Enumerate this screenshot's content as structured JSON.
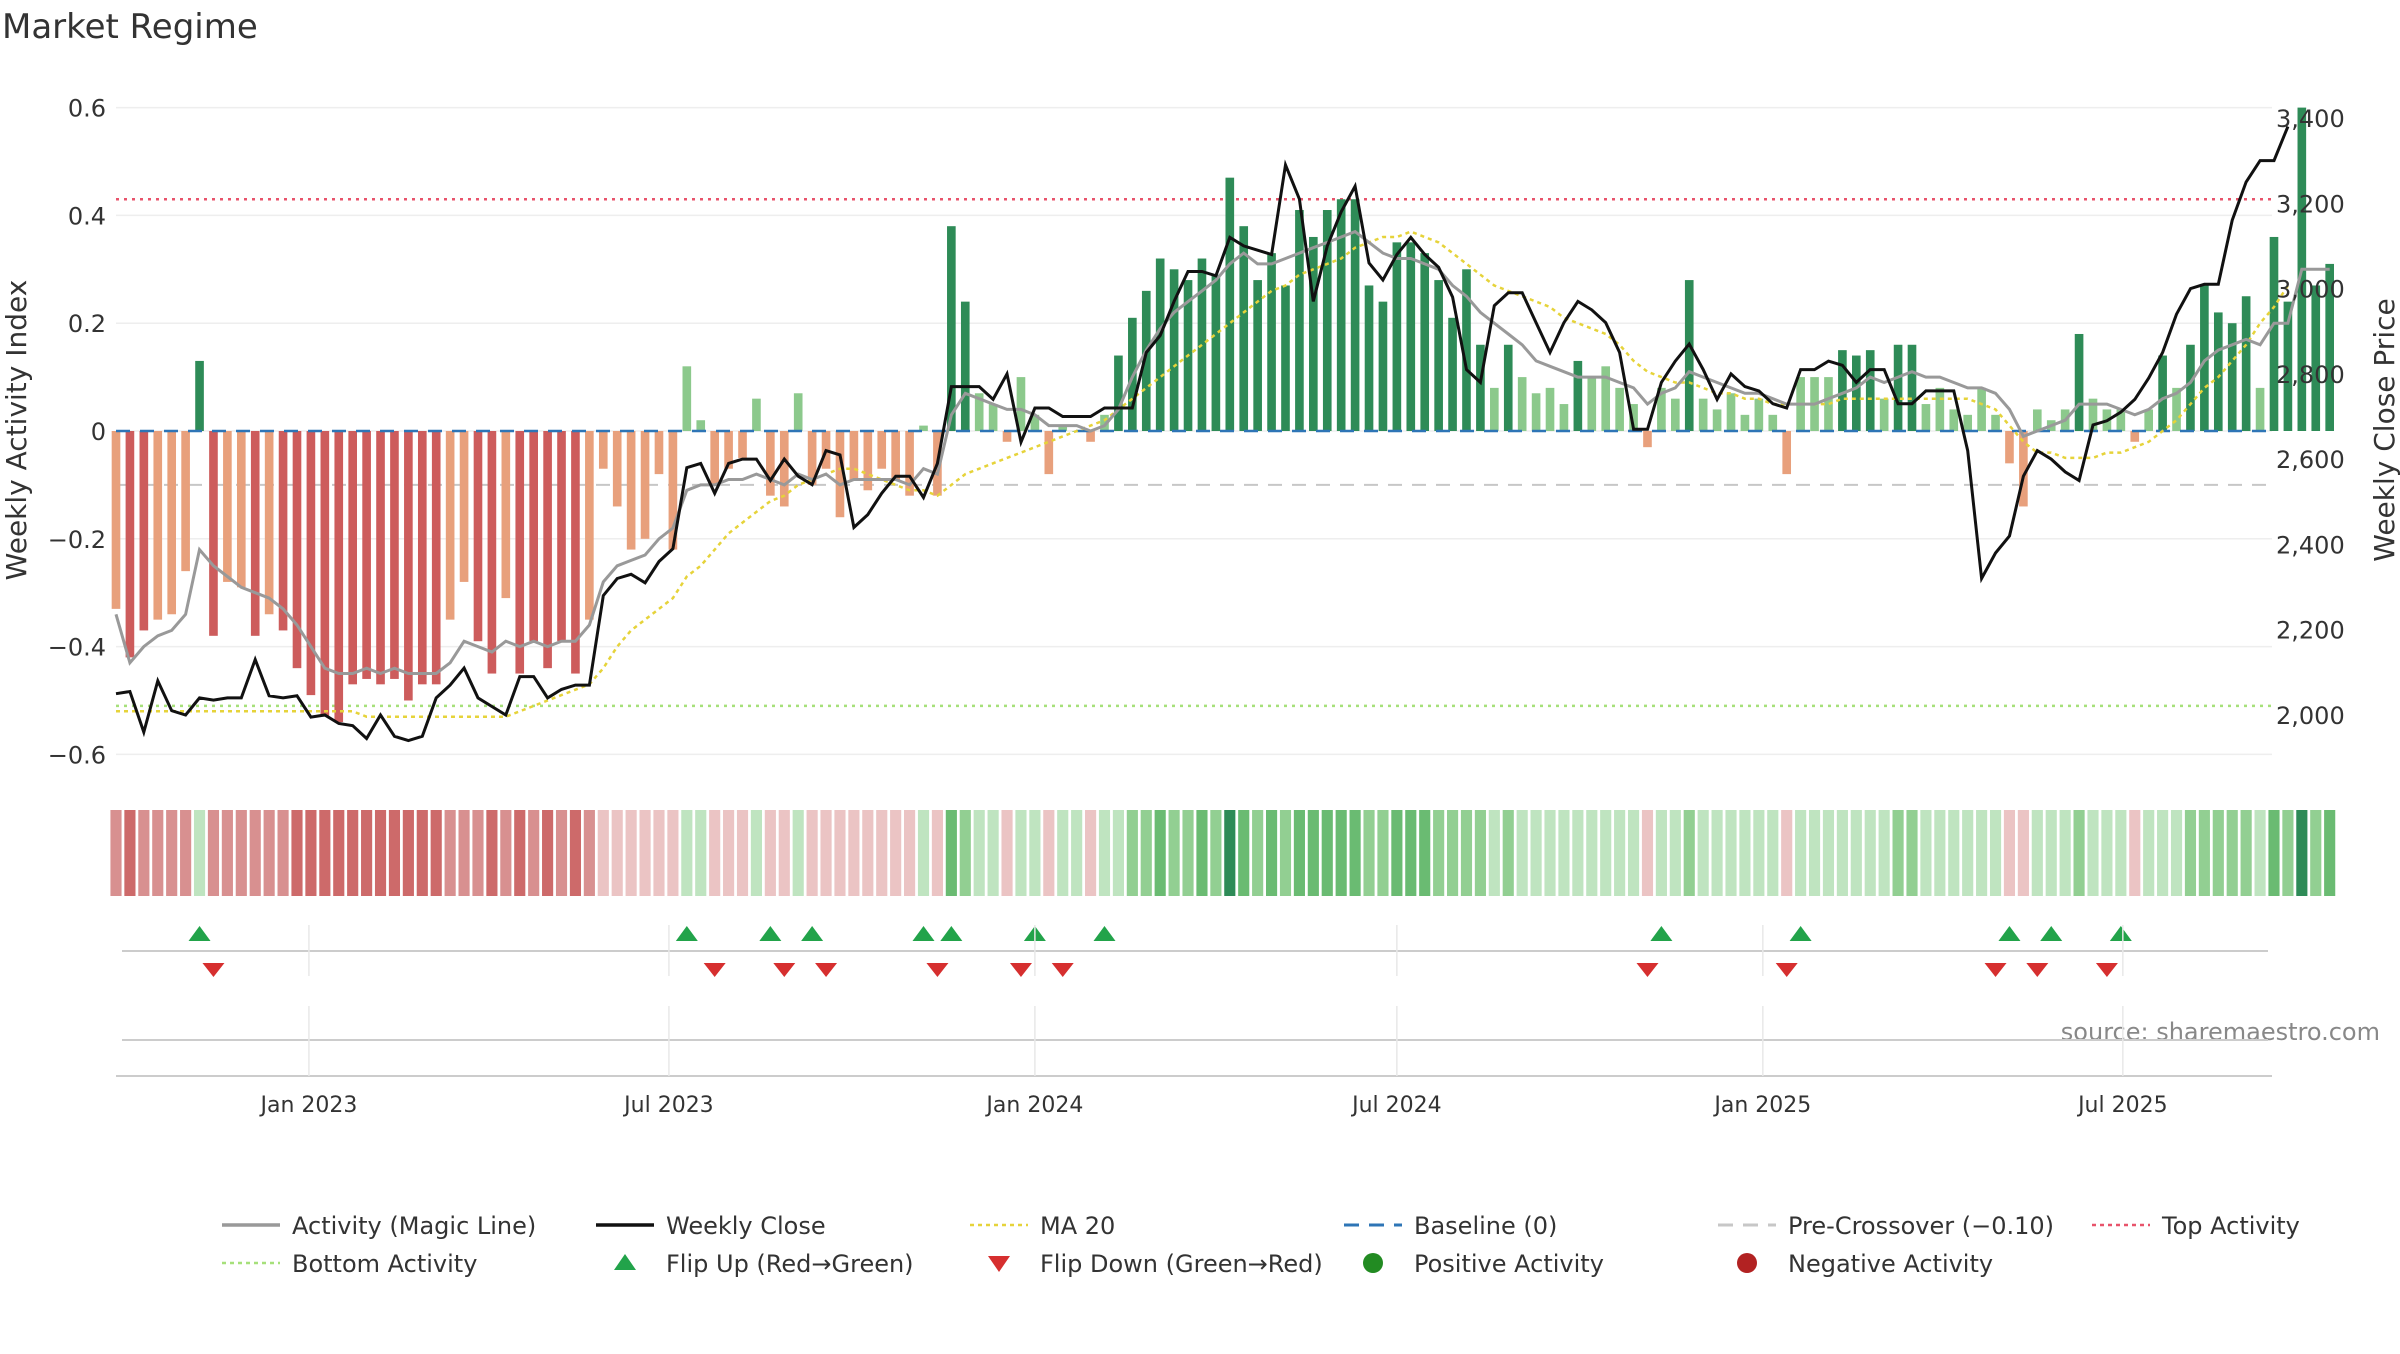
{
  "chart_data": {
    "type": "bar",
    "title": "Market Regime",
    "ylabel": "Weekly Activity Index",
    "y2label": "Weekly Close Price",
    "ylim": [
      -0.65,
      0.65
    ],
    "y2lim": [
      1880,
      3450
    ],
    "yticks": [
      0.6,
      0.4,
      0.2,
      0,
      -0.2,
      -0.4,
      -0.6
    ],
    "yticklabels": [
      "0.6",
      "0.4",
      "0.2",
      "0",
      "−0.2",
      "−0.4",
      "−0.6"
    ],
    "y2ticks": [
      3400,
      3200,
      3000,
      2800,
      2600,
      2400,
      2200,
      2000
    ],
    "y2ticklabels": [
      "3,400",
      "3,200",
      "3,000",
      "2,800",
      "2,600",
      "2,400",
      "2,200",
      "2,000"
    ],
    "xlim": [
      "2022-09-26",
      "2025-09-14"
    ],
    "xticks": [
      "2023-01-01",
      "2023-07-01",
      "2024-01-01",
      "2024-07-01",
      "2025-01-01",
      "2025-07-01"
    ],
    "xticklabels": [
      "Jan 2023",
      "Jul 2023",
      "Jan 2024",
      "Jul 2024",
      "Jan 2025",
      "Jul 2025"
    ],
    "grid": true,
    "legend_position": "bottom",
    "source": "source: sharemaestro.com",
    "start_date": "2022-09-26",
    "week_interval_days": 7,
    "reference_lines": {
      "top_activity": 0.43,
      "bottom_activity": -0.51,
      "baseline": 0,
      "pre_crossover": -0.1
    },
    "activity": [
      -0.33,
      -0.42,
      -0.37,
      -0.35,
      -0.34,
      -0.26,
      0.13,
      -0.38,
      -0.28,
      -0.29,
      -0.38,
      -0.34,
      -0.37,
      -0.44,
      -0.49,
      -0.53,
      -0.54,
      -0.47,
      -0.46,
      -0.47,
      -0.46,
      -0.5,
      -0.47,
      -0.47,
      -0.35,
      -0.28,
      -0.39,
      -0.45,
      -0.31,
      -0.45,
      -0.39,
      -0.44,
      -0.39,
      -0.45,
      -0.35,
      -0.07,
      -0.14,
      -0.22,
      -0.2,
      -0.08,
      -0.22,
      0.12,
      0.02,
      -0.1,
      -0.07,
      -0.05,
      0.06,
      -0.12,
      -0.14,
      0.07,
      -0.1,
      -0.07,
      -0.16,
      -0.09,
      -0.11,
      -0.07,
      -0.09,
      -0.12,
      0.01,
      -0.12,
      0.38,
      0.24,
      0.07,
      0.05,
      -0.02,
      0.1,
      0.03,
      -0.08,
      0.01,
      0,
      -0.02,
      0.03,
      0.14,
      0.21,
      0.26,
      0.32,
      0.3,
      0.28,
      0.32,
      0.29,
      0.47,
      0.38,
      0.28,
      0.33,
      0.27,
      0.41,
      0.36,
      0.41,
      0.43,
      0.43,
      0.27,
      0.24,
      0.35,
      0.35,
      0.33,
      0.28,
      0.21,
      0.3,
      0.16,
      0.08,
      0.16,
      0.1,
      0.07,
      0.08,
      0.05,
      0.13,
      0.1,
      0.12,
      0.08,
      0.05,
      -0.03,
      0.08,
      0.06,
      0.28,
      0.06,
      0.04,
      0.07,
      0.03,
      0.06,
      0.03,
      -0.08,
      0.1,
      0.1,
      0.1,
      0.15,
      0.14,
      0.15,
      0.06,
      0.16,
      0.16,
      0.05,
      0.08,
      0.04,
      0.03,
      0.08,
      0.03,
      -0.06,
      -0.14,
      0.04,
      0.02,
      0.04,
      0.18,
      0.06,
      0.04,
      0.04,
      -0.02,
      0.04,
      0.14,
      0.08,
      0.16,
      0.27,
      0.22,
      0.2,
      0.25,
      0.08,
      0.36,
      0.24,
      0.6,
      0.27,
      0.31
    ],
    "weekly_close": [
      2050,
      2055,
      1960,
      2080,
      2010,
      2000,
      2040,
      2035,
      2040,
      2040,
      2130,
      2045,
      2040,
      2045,
      1995,
      2000,
      1980,
      1975,
      1945,
      2000,
      1950,
      1940,
      1950,
      2040,
      2070,
      2110,
      2040,
      2020,
      2000,
      2090,
      2090,
      2040,
      2060,
      2070,
      2070,
      2280,
      2320,
      2330,
      2310,
      2360,
      2390,
      2580,
      2590,
      2520,
      2590,
      2600,
      2600,
      2550,
      2600,
      2560,
      2540,
      2620,
      2610,
      2440,
      2470,
      2520,
      2560,
      2560,
      2510,
      2590,
      2770,
      2770,
      2770,
      2740,
      2800,
      2640,
      2720,
      2720,
      2700,
      2700,
      2700,
      2720,
      2720,
      2720,
      2850,
      2890,
      2970,
      3040,
      3040,
      3030,
      3120,
      3100,
      3090,
      3080,
      3290,
      3210,
      2970,
      3100,
      3180,
      3240,
      3060,
      3020,
      3080,
      3120,
      3080,
      3050,
      2980,
      2810,
      2780,
      2960,
      2990,
      2990,
      2920,
      2850,
      2920,
      2970,
      2950,
      2920,
      2850,
      2670,
      2670,
      2780,
      2830,
      2870,
      2810,
      2740,
      2800,
      2770,
      2760,
      2730,
      2720,
      2810,
      2810,
      2830,
      2820,
      2780,
      2810,
      2810,
      2730,
      2730,
      2760,
      2760,
      2760,
      2620,
      2320,
      2380,
      2420,
      2560,
      2620,
      2600,
      2570,
      2550,
      2680,
      2690,
      2710,
      2740,
      2790,
      2850,
      2940,
      3000,
      3010,
      3010,
      3160,
      3250,
      3300,
      3300,
      3380
    ],
    "magic_line": [
      -0.34,
      -0.43,
      -0.4,
      -0.38,
      -0.37,
      -0.34,
      -0.22,
      -0.25,
      -0.27,
      -0.29,
      -0.3,
      -0.31,
      -0.33,
      -0.36,
      -0.4,
      -0.44,
      -0.45,
      -0.45,
      -0.44,
      -0.45,
      -0.44,
      -0.45,
      -0.45,
      -0.45,
      -0.43,
      -0.39,
      -0.4,
      -0.41,
      -0.39,
      -0.4,
      -0.39,
      -0.4,
      -0.39,
      -0.39,
      -0.36,
      -0.28,
      -0.25,
      -0.24,
      -0.23,
      -0.2,
      -0.18,
      -0.11,
      -0.1,
      -0.1,
      -0.09,
      -0.09,
      -0.08,
      -0.09,
      -0.1,
      -0.08,
      -0.09,
      -0.08,
      -0.1,
      -0.09,
      -0.09,
      -0.09,
      -0.09,
      -0.1,
      -0.07,
      -0.08,
      0.03,
      0.07,
      0.06,
      0.05,
      0.04,
      0.04,
      0.03,
      0.01,
      0.01,
      0.01,
      0.0,
      0.01,
      0.04,
      0.1,
      0.15,
      0.19,
      0.22,
      0.24,
      0.26,
      0.28,
      0.31,
      0.33,
      0.31,
      0.31,
      0.32,
      0.33,
      0.34,
      0.35,
      0.36,
      0.37,
      0.35,
      0.33,
      0.32,
      0.32,
      0.31,
      0.3,
      0.27,
      0.25,
      0.22,
      0.2,
      0.18,
      0.16,
      0.13,
      0.12,
      0.11,
      0.1,
      0.1,
      0.1,
      0.09,
      0.08,
      0.05,
      0.07,
      0.08,
      0.11,
      0.1,
      0.09,
      0.08,
      0.07,
      0.07,
      0.06,
      0.05,
      0.05,
      0.05,
      0.06,
      0.07,
      0.08,
      0.1,
      0.09,
      0.1,
      0.11,
      0.1,
      0.1,
      0.09,
      0.08,
      0.08,
      0.07,
      0.04,
      -0.01,
      0.0,
      0.01,
      0.02,
      0.05,
      0.05,
      0.05,
      0.04,
      0.03,
      0.04,
      0.06,
      0.07,
      0.09,
      0.13,
      0.15,
      0.16,
      0.17,
      0.16,
      0.2,
      0.2,
      0.3,
      0.3,
      0.3
    ],
    "ma20": [
      -0.52,
      -0.52,
      -0.52,
      -0.52,
      -0.52,
      -0.52,
      -0.52,
      -0.52,
      -0.52,
      -0.52,
      -0.52,
      -0.52,
      -0.52,
      -0.52,
      -0.52,
      -0.52,
      -0.52,
      -0.52,
      -0.53,
      -0.53,
      -0.53,
      -0.53,
      -0.53,
      -0.53,
      -0.53,
      -0.53,
      -0.53,
      -0.53,
      -0.53,
      -0.52,
      -0.51,
      -0.5,
      -0.49,
      -0.48,
      -0.47,
      -0.44,
      -0.4,
      -0.37,
      -0.35,
      -0.33,
      -0.31,
      -0.27,
      -0.25,
      -0.22,
      -0.19,
      -0.17,
      -0.15,
      -0.13,
      -0.12,
      -0.1,
      -0.09,
      -0.08,
      -0.07,
      -0.07,
      -0.08,
      -0.09,
      -0.1,
      -0.11,
      -0.11,
      -0.12,
      -0.1,
      -0.08,
      -0.07,
      -0.06,
      -0.05,
      -0.04,
      -0.03,
      -0.02,
      -0.01,
      0.0,
      0.01,
      0.02,
      0.04,
      0.06,
      0.08,
      0.1,
      0.12,
      0.14,
      0.16,
      0.18,
      0.2,
      0.22,
      0.24,
      0.26,
      0.27,
      0.29,
      0.3,
      0.31,
      0.32,
      0.34,
      0.35,
      0.36,
      0.36,
      0.37,
      0.36,
      0.35,
      0.33,
      0.31,
      0.29,
      0.27,
      0.26,
      0.25,
      0.24,
      0.23,
      0.21,
      0.2,
      0.19,
      0.18,
      0.16,
      0.13,
      0.11,
      0.1,
      0.09,
      0.09,
      0.08,
      0.07,
      0.07,
      0.06,
      0.06,
      0.05,
      0.05,
      0.05,
      0.05,
      0.05,
      0.06,
      0.06,
      0.06,
      0.06,
      0.06,
      0.06,
      0.06,
      0.06,
      0.06,
      0.06,
      0.05,
      0.04,
      0.01,
      -0.02,
      -0.04,
      -0.04,
      -0.05,
      -0.05,
      -0.05,
      -0.04,
      -0.04,
      -0.03,
      -0.02,
      0.0,
      0.02,
      0.05,
      0.08,
      0.1,
      0.13,
      0.16,
      0.2,
      0.23,
      0.27
    ],
    "flips_up": [
      6,
      41,
      47,
      50,
      58,
      60,
      66,
      71,
      111,
      121,
      136,
      139,
      144
    ],
    "flips_down": [
      7,
      43,
      48,
      51,
      59,
      65,
      68,
      110,
      120,
      135,
      138,
      143
    ],
    "series_colors": {
      "magic_line": "#999999",
      "weekly_close": "#111111",
      "ma20": "#e6d33a",
      "baseline": "#2e75b6",
      "pre_crossover": "#c7c7c7",
      "top_activity": "#e8536b",
      "bottom_activity": "#a6e07a",
      "flip_up": "#22a34a",
      "flip_down": "#d62f2f",
      "positive": "#2e8b57",
      "negative": "#b22222"
    },
    "legend": [
      {
        "label": "Activity (Magic Line)",
        "icon": "solid-line",
        "color": "#999999"
      },
      {
        "label": "Weekly Close",
        "icon": "solid-line",
        "color": "#111111"
      },
      {
        "label": "MA 20",
        "icon": "dotted-line",
        "color": "#e6d33a"
      },
      {
        "label": "Baseline (0)",
        "icon": "dashed-line",
        "color": "#2e75b6"
      },
      {
        "label": "Pre-Crossover (−0.10)",
        "icon": "dashed-line",
        "color": "#c7c7c7"
      },
      {
        "label": "Top Activity",
        "icon": "dotted-line",
        "color": "#e8536b"
      },
      {
        "label": "Bottom Activity",
        "icon": "dotted-line",
        "color": "#a6e07a"
      },
      {
        "label": "Flip Up (Red→Green)",
        "icon": "triangle-up",
        "color": "#22a34a"
      },
      {
        "label": "Flip Down (Green→Red)",
        "icon": "triangle-down",
        "color": "#d62f2f"
      },
      {
        "label": "Positive Activity",
        "icon": "circle",
        "color": "#228b22"
      },
      {
        "label": "Negative Activity",
        "icon": "circle",
        "color": "#b22222"
      }
    ]
  }
}
